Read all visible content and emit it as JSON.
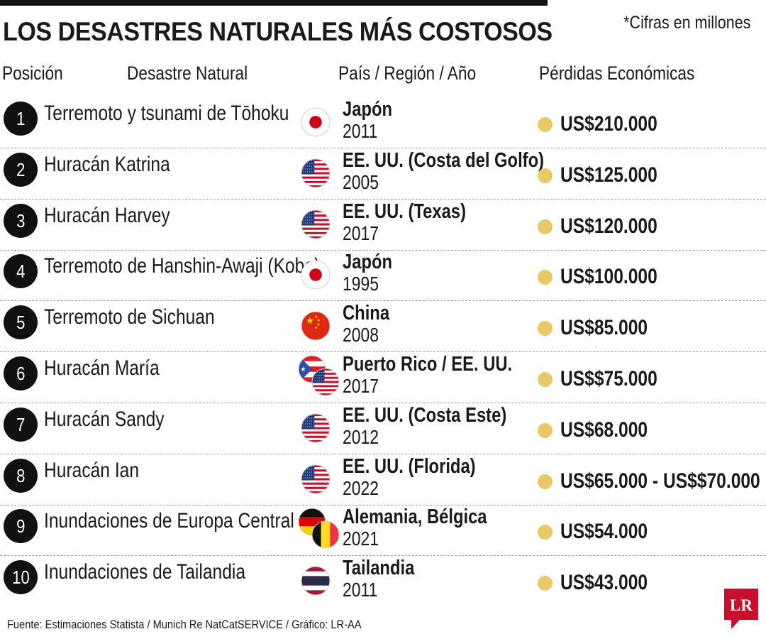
{
  "title": "LOS DESASTRES NATURALES MÁS COSTOSOS",
  "note": "*Cifras en millones",
  "headers": {
    "position": "Posición",
    "disaster": "Desastre Natural",
    "country": "País / Región / Año",
    "loss": "Pérdidas Económicas"
  },
  "colors": {
    "dot": "#e8c968",
    "rank_bg": "#111111",
    "logo": "#c8102e"
  },
  "chart_data": {
    "type": "table",
    "columns": [
      "Posición",
      "Desastre Natural",
      "País / Región / Año",
      "Pérdidas Económicas"
    ],
    "rows": [
      {
        "rank": "1",
        "disaster": "Terremoto y tsunami de Tōhoku",
        "country": "Japón",
        "year": "2011",
        "loss": "US$210.000",
        "flags": [
          "japan"
        ]
      },
      {
        "rank": "2",
        "disaster": "Huracán Katrina",
        "country": "EE. UU. (Costa del Golfo)",
        "year": "2005",
        "loss": "US$125.000",
        "flags": [
          "usa"
        ]
      },
      {
        "rank": "3",
        "disaster": "Huracán Harvey",
        "country": "EE. UU. (Texas)",
        "year": "2017",
        "loss": "US$120.000",
        "flags": [
          "usa"
        ]
      },
      {
        "rank": "4",
        "disaster": "Terremoto de Hanshin-Awaji (Kobe)",
        "country": "Japón",
        "year": "1995",
        "loss": "US$100.000",
        "flags": [
          "japan"
        ]
      },
      {
        "rank": "5",
        "disaster": "Terremoto de Sichuan",
        "country": "China",
        "year": "2008",
        "loss": "US$85.000",
        "flags": [
          "china"
        ]
      },
      {
        "rank": "6",
        "disaster": "Huracán María",
        "country": "Puerto Rico / EE. UU.",
        "year": "2017",
        "loss": "US$$75.000",
        "flags": [
          "puerto-rico",
          "usa"
        ]
      },
      {
        "rank": "7",
        "disaster": "Huracán Sandy",
        "country": "EE. UU. (Costa Este)",
        "year": "2012",
        "loss": "US$68.000",
        "flags": [
          "usa"
        ]
      },
      {
        "rank": "8",
        "disaster": "Huracán Ian",
        "country": "EE. UU. (Florida)",
        "year": "2022",
        "loss": "US$65.000 - US$$70.000",
        "flags": [
          "usa"
        ]
      },
      {
        "rank": "9",
        "disaster": "Inundaciones de Europa Central",
        "country": "Alemania, Bélgica",
        "year": "2021",
        "loss": "US$54.000",
        "flags": [
          "germany",
          "belgium"
        ]
      },
      {
        "rank": "10",
        "disaster": "Inundaciones de Tailandia",
        "country": "Tailandia",
        "year": "2011",
        "loss": "US$43.000",
        "flags": [
          "thailand"
        ]
      }
    ]
  },
  "source": "Fuente: Estimaciones Statista / Munich Re NatCatSERVICE / Gráfico: LR-AA",
  "logo": "LR"
}
